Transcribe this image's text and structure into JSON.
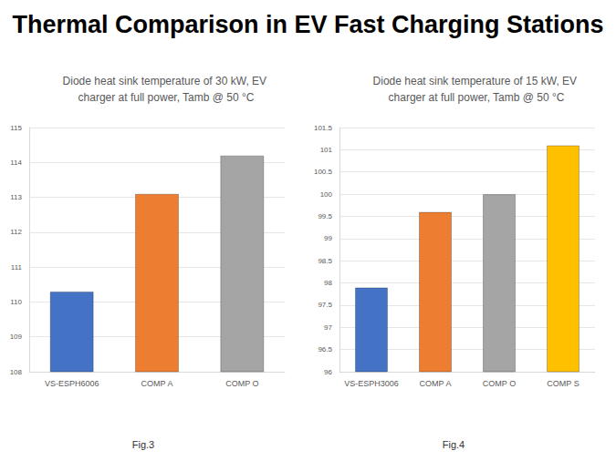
{
  "title": "Thermal Comparison in EV Fast Charging Stations",
  "chart_data": [
    {
      "type": "bar",
      "title": "Diode heat sink temperature of 30 kW, EV charger at full power, Tamb @ 50 °C",
      "annotation": "Fig.3",
      "categories": [
        "VS-ESPH6006",
        "COMP A",
        "COMP O"
      ],
      "values": [
        110.3,
        113.1,
        114.2
      ],
      "colors": [
        "#4472c4",
        "#ed7d31",
        "#a5a5a5"
      ],
      "ylim": [
        108,
        115
      ],
      "yticks": [
        108,
        109,
        110,
        111,
        112,
        113,
        114,
        115
      ],
      "grid": true
    },
    {
      "type": "bar",
      "title": "Diode heat sink temperature of 15 kW, EV charger at full power, Tamb @ 50 °C",
      "annotation": "Fig.4",
      "categories": [
        "VS-ESPH3006",
        "COMP A",
        "COMP O",
        "COMP S"
      ],
      "values": [
        97.9,
        99.6,
        100.0,
        101.1
      ],
      "colors": [
        "#4472c4",
        "#ed7d31",
        "#a5a5a5",
        "#ffc000"
      ],
      "ylim": [
        96,
        101.5
      ],
      "yticks": [
        96,
        96.5,
        97,
        97.5,
        98,
        98.5,
        99,
        99.5,
        100,
        100.5,
        101,
        101.5
      ],
      "grid": true
    }
  ]
}
